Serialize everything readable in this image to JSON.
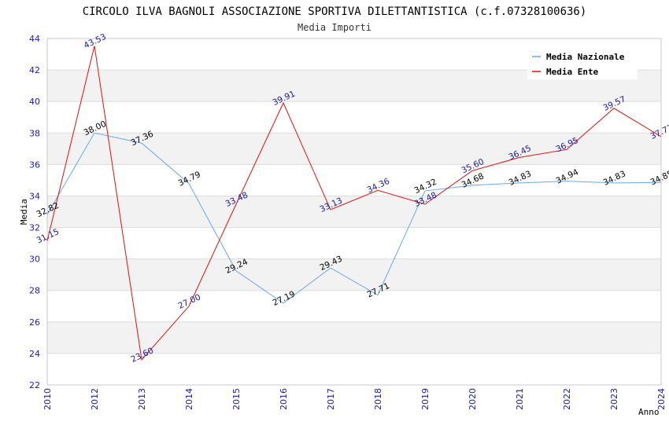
{
  "chart_data": {
    "type": "line",
    "title": "CIRCOLO ILVA BAGNOLI ASSOCIAZIONE SPORTIVA DILETTANTISTICA (c.f.07328100636)",
    "subtitle": "Media Importi",
    "xlabel": "Anno",
    "ylabel": "Media",
    "ylim": [
      22,
      44
    ],
    "yticks": [
      "22",
      "24",
      "26",
      "28",
      "30",
      "32",
      "34",
      "36",
      "38",
      "40",
      "42",
      "44"
    ],
    "categories": [
      "2010",
      "2012",
      "2013",
      "2014",
      "2015",
      "2016",
      "2017",
      "2018",
      "2019",
      "2020",
      "2021",
      "2022",
      "2023",
      "2024"
    ],
    "grid": true,
    "legend_position": "top-right",
    "series": [
      {
        "name": "Media Nazionale",
        "color": "#6aa8e8",
        "label_color": "#000000",
        "values": [
          32.82,
          38.0,
          37.36,
          34.79,
          29.24,
          27.19,
          29.43,
          27.71,
          34.32,
          34.68,
          34.83,
          34.94,
          34.83,
          34.85
        ],
        "labels": [
          "32.82",
          "38.00",
          "37.36",
          "34.79",
          "29.24",
          "27.19",
          "29.43",
          "27.71",
          "34.32",
          "34.68",
          "34.83",
          "34.94",
          "34.83",
          "34.85"
        ]
      },
      {
        "name": "Media Ente",
        "color": "#e01010",
        "label_color": "#1a1a99",
        "values": [
          31.15,
          43.53,
          23.6,
          27.0,
          33.48,
          39.91,
          33.13,
          34.36,
          33.48,
          35.6,
          36.45,
          36.95,
          39.57,
          37.77
        ],
        "labels": [
          "31.15",
          "43.53",
          "23.60",
          "27.00",
          "33.48",
          "39.91",
          "33.13",
          "34.36",
          "33.48",
          "35.60",
          "36.45",
          "36.95",
          "39.57",
          "37.77"
        ]
      }
    ]
  }
}
